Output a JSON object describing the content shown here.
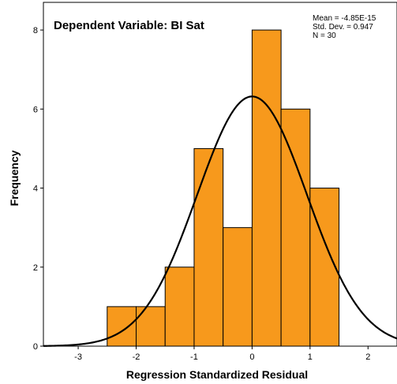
{
  "chart_data": {
    "type": "bar",
    "title": "Dependent Variable: BI Sat",
    "xlabel": "Regression Standardized Residual",
    "ylabel": "Frequency",
    "bins": [
      {
        "x0": -2.5,
        "x1": -2.0,
        "count": 1
      },
      {
        "x0": -2.0,
        "x1": -1.5,
        "count": 1
      },
      {
        "x0": -1.5,
        "x1": -1.0,
        "count": 2
      },
      {
        "x0": -1.0,
        "x1": -0.5,
        "count": 5
      },
      {
        "x0": -0.5,
        "x1": 0.0,
        "count": 3
      },
      {
        "x0": 0.0,
        "x1": 0.5,
        "count": 8
      },
      {
        "x0": 0.5,
        "x1": 1.0,
        "count": 6
      },
      {
        "x0": 1.0,
        "x1": 1.5,
        "count": 4
      }
    ],
    "x_ticks": [
      "-3",
      "-2",
      "-1",
      "0",
      "1",
      "2"
    ],
    "x_tick_values": [
      -3,
      -2,
      -1,
      0,
      1,
      2
    ],
    "y_ticks": [
      "0",
      "2",
      "4",
      "6",
      "8"
    ],
    "y_tick_values": [
      0,
      2,
      4,
      6,
      8
    ],
    "xlim": [
      -3.6,
      2.5
    ],
    "ylim": [
      0,
      8.7
    ],
    "normal_curve": {
      "mean": -4.85e-15,
      "sd": 0.947,
      "n": 30,
      "bin_width": 0.5
    },
    "stats": {
      "mean": "Mean = -4.85E-15",
      "sd": "Std. Dev. = 0.947",
      "n": "N = 30"
    },
    "grid": false,
    "colors": {
      "bar_fill": "#f7991c",
      "bar_stroke": "#000000",
      "curve": "#000000",
      "axis": "#000000"
    }
  }
}
